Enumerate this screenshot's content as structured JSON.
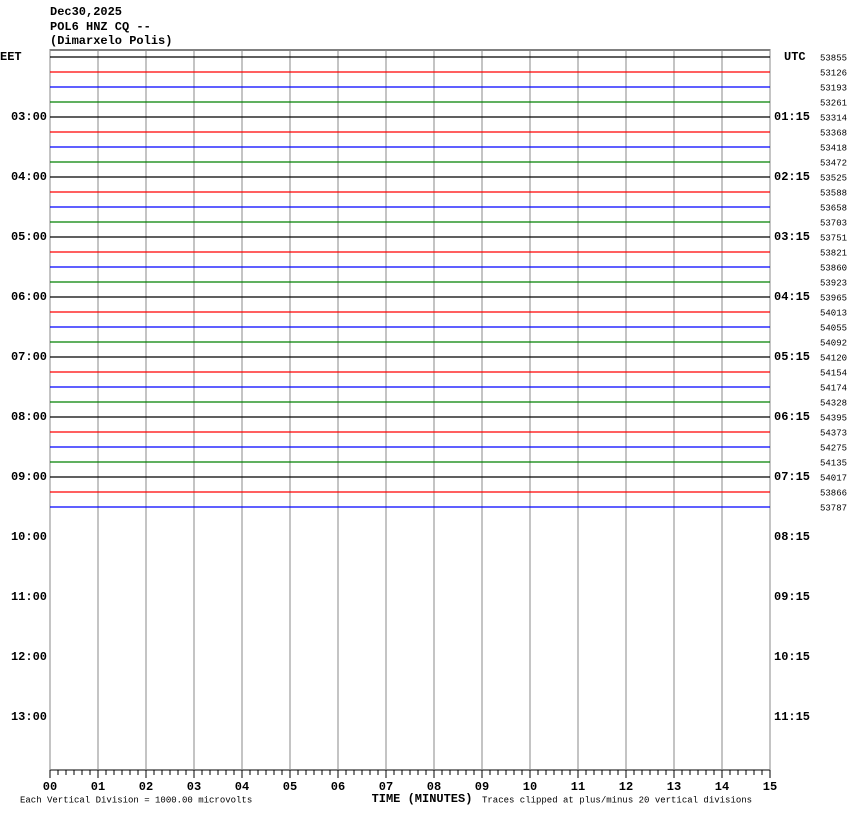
{
  "header": {
    "date": "Dec30,2025",
    "station": "POL6 HNZ CQ --",
    "location": "(Dimarxelo Polis)"
  },
  "left_axis": {
    "title": "EET",
    "labels": [
      "03:00",
      "04:00",
      "05:00",
      "06:00",
      "07:00",
      "08:00",
      "09:00",
      "10:00",
      "11:00",
      "12:00",
      "13:00"
    ]
  },
  "right_axis": {
    "title": "UTC",
    "labels": [
      "01:15",
      "02:15",
      "03:15",
      "04:15",
      "05:15",
      "06:15",
      "07:15",
      "08:15",
      "09:15",
      "10:15",
      "11:15"
    ]
  },
  "trace_counts": [
    53855,
    53126,
    53193,
    53261,
    53314,
    53368,
    53418,
    53472,
    53525,
    53588,
    53658,
    53703,
    53751,
    53821,
    53860,
    53923,
    53965,
    54013,
    54055,
    54092,
    54120,
    54154,
    54174,
    54328,
    54395,
    54373,
    54275,
    54135,
    54017,
    53866,
    53787
  ],
  "trace_colors": [
    "#000000",
    "#ff0000",
    "#0000ff",
    "#008000"
  ],
  "x_axis": {
    "title": "TIME (MINUTES)",
    "labels": [
      "00",
      "01",
      "02",
      "03",
      "04",
      "05",
      "06",
      "07",
      "08",
      "09",
      "10",
      "11",
      "12",
      "13",
      "14",
      "15"
    ]
  },
  "footer": {
    "scale": "Each Vertical Division = 1000.00 microvolts",
    "clip": "Traces clipped at plus/minus 20 vertical divisions"
  }
}
